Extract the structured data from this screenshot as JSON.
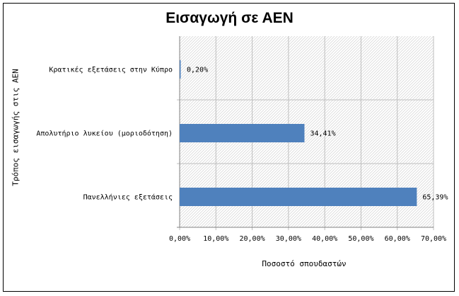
{
  "chart_data": {
    "type": "bar",
    "orientation": "horizontal",
    "title": "Εισαγωγή σε ΑΕΝ",
    "xlabel": "Ποσοστό σπουδαστών",
    "ylabel": "Τρόπος εισαγωγής στις ΑΕΝ",
    "categories": [
      "Κρατικές εξετάσεις στην Κύπρο",
      "Απολυτήριο λυκείου (μοριοδότηση)",
      "Πανελλήνιες εξετάσεις"
    ],
    "values": [
      0.2,
      34.41,
      65.39
    ],
    "value_labels": [
      "0,20%",
      "34,41%",
      "65,39%"
    ],
    "xlim": [
      0,
      70
    ],
    "xticks": [
      0,
      10,
      20,
      30,
      40,
      50,
      60,
      70
    ],
    "xtick_labels": [
      "0,00%",
      "10,00%",
      "20,00%",
      "30,00%",
      "40,00%",
      "50,00%",
      "60,00%",
      "70,00%"
    ],
    "grid": true,
    "legend": "none",
    "colors": {
      "bar": "#4f81bd",
      "grid": "#bfbfbf",
      "hatch": "#d9d9d9",
      "frame": "#000000"
    }
  }
}
